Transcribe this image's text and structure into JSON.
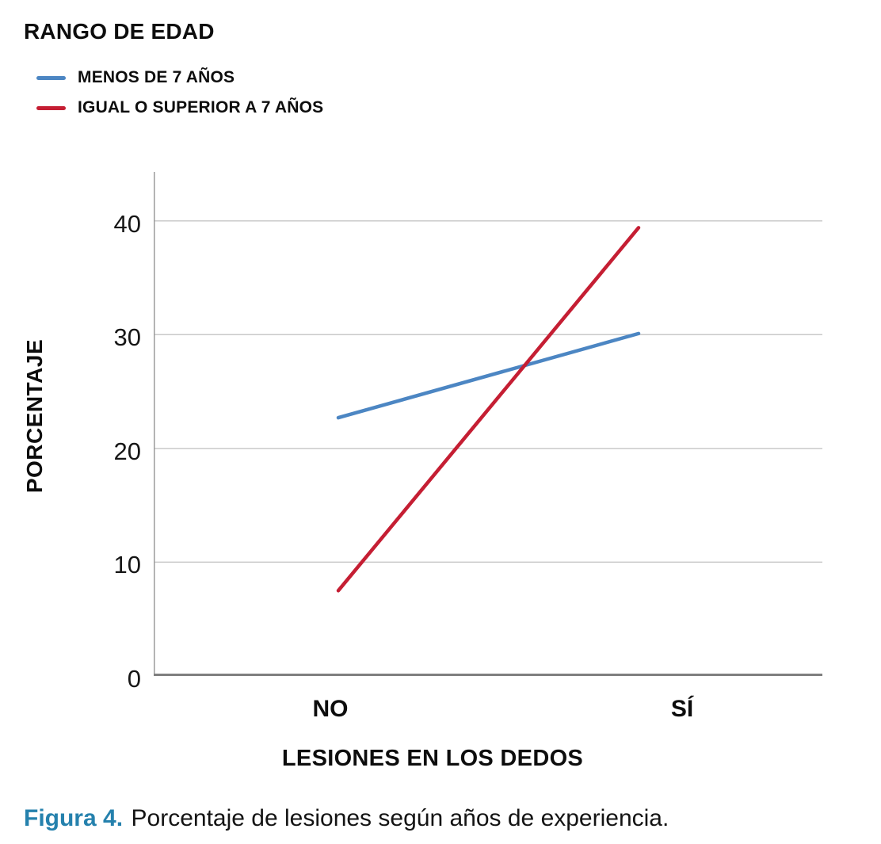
{
  "legend": {
    "title": "RANGO DE EDAD",
    "items": [
      {
        "label": "MENOS DE 7 AÑOS",
        "color": "#4C86C3"
      },
      {
        "label": "IGUAL O SUPERIOR A 7 AÑOS",
        "color": "#C51E33"
      }
    ]
  },
  "chart_data": {
    "type": "line",
    "categories": [
      "NO",
      "SÍ"
    ],
    "series": [
      {
        "name": "MENOS DE 7 AÑOS",
        "color": "#4C86C3",
        "values": [
          22.7,
          30.1
        ]
      },
      {
        "name": "IGUAL O SUPERIOR A 7 AÑOS",
        "color": "#C51E33",
        "values": [
          7.5,
          39.4
        ]
      }
    ],
    "title": "",
    "xlabel": "LESIONES EN LOS DEDOS",
    "ylabel": "PORCENTAJE",
    "ylim": [
      0,
      44.3
    ],
    "yticks": [
      0,
      10,
      20,
      30,
      40
    ],
    "grid": true,
    "legend_position": "top-left",
    "colors": {
      "gridline": "#C9C9C9",
      "y_axis_line": "#9B9B9B",
      "x_axis_line": "#7F7F7F"
    }
  },
  "caption": {
    "label": "Figura 4.",
    "text": "Porcentaje de lesiones según años de experiencia.",
    "label_color": "#2581AD"
  }
}
